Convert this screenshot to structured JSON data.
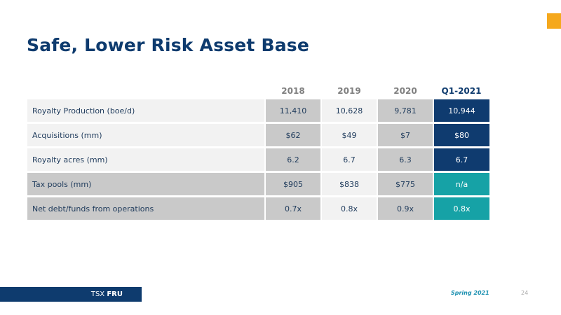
{
  "colors": {
    "brand_navy": "#0e3b6e",
    "accent_orange": "#f5a81c",
    "teal": "#16a2a6",
    "cell_gray": "#c9c9c9",
    "cell_light": "#f2f2f2"
  },
  "slide": {
    "title": "Safe, Lower Risk Asset Base",
    "footer": {
      "ticker_prefix": "TSX",
      "ticker_symbol": "FRU",
      "date": "Spring 2021",
      "page_number": "24"
    }
  },
  "table": {
    "headers": [
      "2018",
      "2019",
      "2020",
      "Q1-2021"
    ],
    "rows": [
      {
        "label": "Royalty Production (boe/d)",
        "values": [
          "11,410",
          "10,628",
          "9,781",
          "10,944"
        ]
      },
      {
        "label": "Acquisitions (mm)",
        "values": [
          "$62",
          "$49",
          "$7",
          "$80"
        ]
      },
      {
        "label": "Royalty acres (mm)",
        "values": [
          "6.2",
          "6.7",
          "6.3",
          "6.7"
        ]
      },
      {
        "label": "Tax pools (mm)",
        "values": [
          "$905",
          "$838",
          "$775",
          "n/a"
        ]
      },
      {
        "label": "Net debt/funds from operations",
        "values": [
          "0.7x",
          "0.8x",
          "0.9x",
          "0.8x"
        ]
      }
    ]
  }
}
